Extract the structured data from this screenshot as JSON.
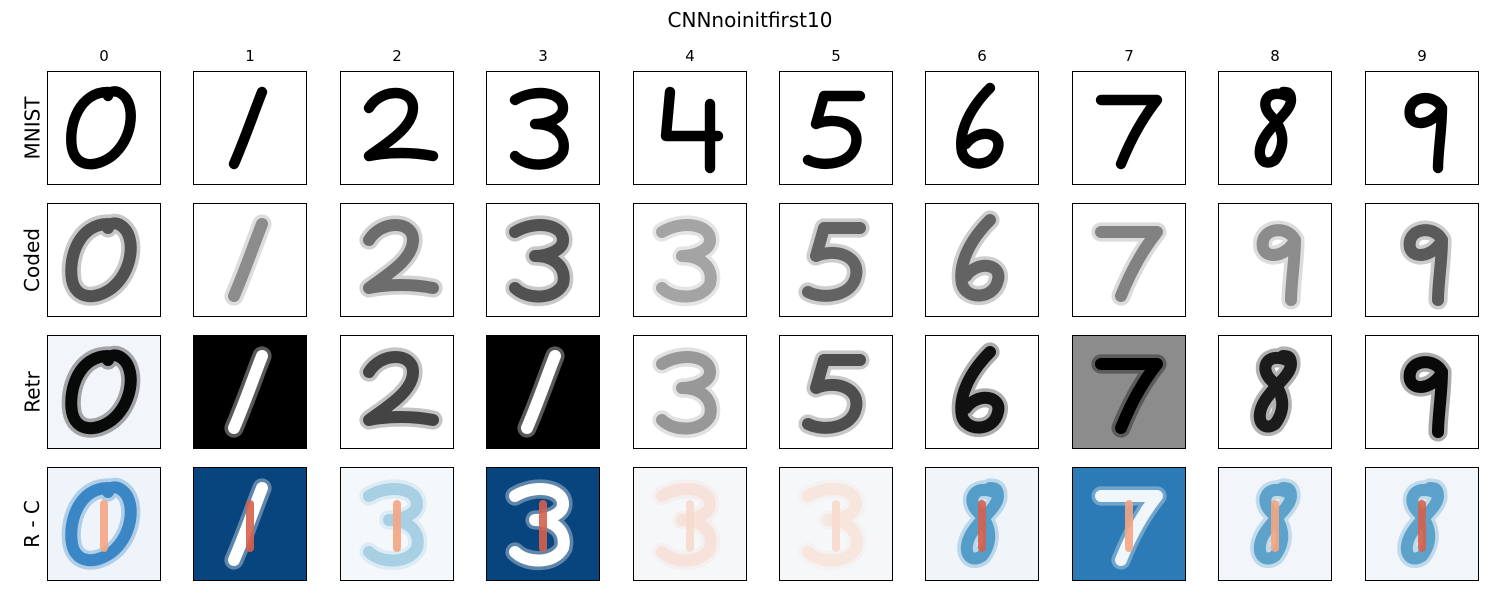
{
  "figure": {
    "title": "CNNnoinitfirst10",
    "columns": [
      "0",
      "1",
      "2",
      "3",
      "4",
      "5",
      "6",
      "7",
      "8",
      "9"
    ],
    "rows": [
      "MNIST",
      "Coded",
      "Retr",
      "R - C"
    ]
  },
  "panels": {
    "MNIST": [
      {
        "digit": "0",
        "ink": "#000000",
        "bg": "#ffffff",
        "opacity": 1.0
      },
      {
        "digit": "1",
        "ink": "#000000",
        "bg": "#ffffff",
        "opacity": 1.0
      },
      {
        "digit": "2",
        "ink": "#000000",
        "bg": "#ffffff",
        "opacity": 1.0
      },
      {
        "digit": "3",
        "ink": "#000000",
        "bg": "#ffffff",
        "opacity": 1.0
      },
      {
        "digit": "4",
        "ink": "#000000",
        "bg": "#ffffff",
        "opacity": 1.0
      },
      {
        "digit": "5",
        "ink": "#000000",
        "bg": "#ffffff",
        "opacity": 1.0
      },
      {
        "digit": "6",
        "ink": "#000000",
        "bg": "#ffffff",
        "opacity": 1.0
      },
      {
        "digit": "7",
        "ink": "#000000",
        "bg": "#ffffff",
        "opacity": 1.0
      },
      {
        "digit": "8",
        "ink": "#000000",
        "bg": "#ffffff",
        "opacity": 1.0
      },
      {
        "digit": "9",
        "ink": "#000000",
        "bg": "#ffffff",
        "opacity": 1.0
      }
    ],
    "Coded": [
      {
        "digit": "0",
        "ink": "#2a2a2a",
        "bg": "#ffffff",
        "opacity": 0.75
      },
      {
        "digit": "1",
        "ink": "#2a2a2a",
        "bg": "#ffffff",
        "opacity": 0.45
      },
      {
        "digit": "2",
        "ink": "#2a2a2a",
        "bg": "#ffffff",
        "opacity": 0.6
      },
      {
        "digit": "3",
        "ink": "#2a2a2a",
        "bg": "#ffffff",
        "opacity": 0.75
      },
      {
        "digit": "3",
        "ink": "#2a2a2a",
        "bg": "#ffffff",
        "opacity": 0.35
      },
      {
        "digit": "5",
        "ink": "#2a2a2a",
        "bg": "#ffffff",
        "opacity": 0.65
      },
      {
        "digit": "6",
        "ink": "#2a2a2a",
        "bg": "#ffffff",
        "opacity": 0.65
      },
      {
        "digit": "7",
        "ink": "#2a2a2a",
        "bg": "#ffffff",
        "opacity": 0.5
      },
      {
        "digit": "9",
        "ink": "#2a2a2a",
        "bg": "#ffffff",
        "opacity": 0.45
      },
      {
        "digit": "9",
        "ink": "#2a2a2a",
        "bg": "#ffffff",
        "opacity": 0.7
      }
    ],
    "Retr": [
      {
        "digit": "0",
        "ink": "#000000",
        "bg": "#f2f6fa",
        "opacity": 0.95
      },
      {
        "digit": "1",
        "ink": "#ffffff",
        "bg": "#000000",
        "opacity": 1.0
      },
      {
        "digit": "2",
        "ink": "#1a1a1a",
        "bg": "#ffffff",
        "opacity": 0.75
      },
      {
        "digit": "1",
        "ink": "#ffffff",
        "bg": "#000000",
        "opacity": 1.0
      },
      {
        "digit": "3",
        "ink": "#2a2a2a",
        "bg": "#ffffff",
        "opacity": 0.4
      },
      {
        "digit": "5",
        "ink": "#1a1a1a",
        "bg": "#ffffff",
        "opacity": 0.7
      },
      {
        "digit": "6",
        "ink": "#000000",
        "bg": "#ffffff",
        "opacity": 0.9
      },
      {
        "digit": "7",
        "ink": "#000000",
        "bg": "#8c8c8c",
        "opacity": 1.0
      },
      {
        "digit": "8",
        "ink": "#000000",
        "bg": "#ffffff",
        "opacity": 0.85
      },
      {
        "digit": "9",
        "ink": "#000000",
        "bg": "#ffffff",
        "opacity": 0.95
      }
    ],
    "R - C": [
      {
        "digit": "0",
        "ink": "#2f7fc1",
        "bg": "#eef4fa",
        "opacity": 0.9,
        "hot": "#f4a582"
      },
      {
        "digit": "1",
        "ink": "#ffffff",
        "bg": "#08457e",
        "opacity": 1.0,
        "hot": "#d6604d"
      },
      {
        "digit": "3",
        "ink": "#92c5de",
        "bg": "#f4f8fb",
        "opacity": 0.7,
        "hot": "#f4a582"
      },
      {
        "digit": "3",
        "ink": "#ffffff",
        "bg": "#08457e",
        "opacity": 1.0,
        "hot": "#d6604d"
      },
      {
        "digit": "3",
        "ink": "#f7d9cc",
        "bg": "#f5f7f9",
        "opacity": 0.6,
        "hot": "#f7d9cc"
      },
      {
        "digit": "3",
        "ink": "#f7d9cc",
        "bg": "#f5f7f9",
        "opacity": 0.5,
        "hot": "#f7d9cc"
      },
      {
        "digit": "8",
        "ink": "#4393c3",
        "bg": "#f0f5fa",
        "opacity": 0.85,
        "hot": "#d6604d"
      },
      {
        "digit": "7",
        "ink": "#ffffff",
        "bg": "#2c7bb6",
        "opacity": 0.9,
        "hot": "#f4a582"
      },
      {
        "digit": "8",
        "ink": "#4393c3",
        "bg": "#f2f6fa",
        "opacity": 0.8,
        "hot": "#f4a582"
      },
      {
        "digit": "8",
        "ink": "#4393c3",
        "bg": "#f2f6fa",
        "opacity": 0.8,
        "hot": "#d6604d"
      }
    ]
  }
}
